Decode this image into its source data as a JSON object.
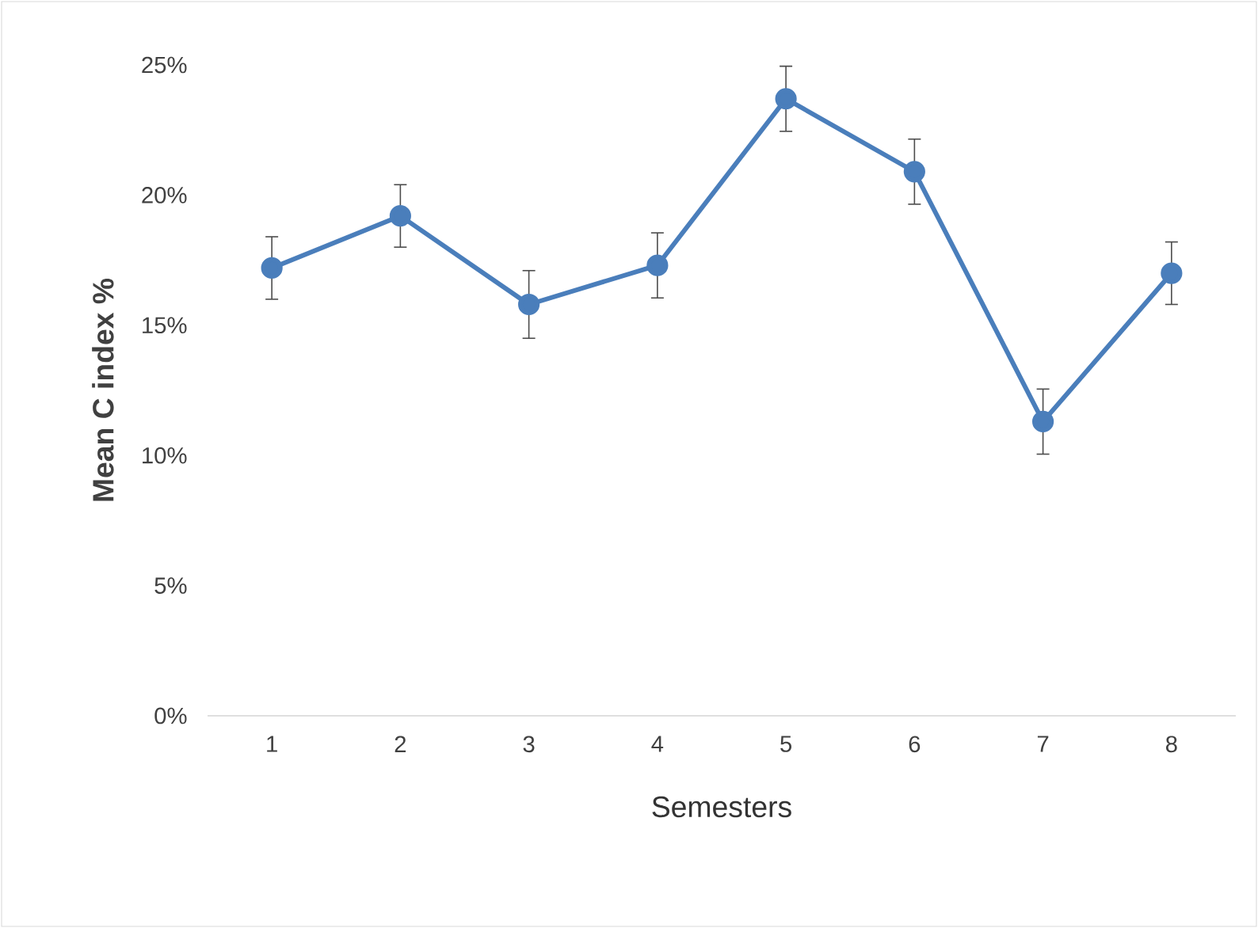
{
  "chart_data": {
    "type": "line",
    "xlabel": "Semesters",
    "ylabel": "Mean C index %",
    "categories": [
      "1",
      "2",
      "3",
      "4",
      "5",
      "6",
      "7",
      "8"
    ],
    "series": [
      {
        "color": "#4a7ebb",
        "values": [
          17.2,
          19.2,
          15.8,
          17.3,
          23.7,
          20.9,
          11.3,
          17.0
        ],
        "errors": [
          1.2,
          1.2,
          1.3,
          1.25,
          1.25,
          1.25,
          1.25,
          1.2
        ]
      }
    ],
    "ylim": [
      0,
      25
    ],
    "yticks": [
      {
        "value": 0,
        "label": "0%"
      },
      {
        "value": 5,
        "label": "5%"
      },
      {
        "value": 10,
        "label": "10%"
      },
      {
        "value": 15,
        "label": "15%"
      },
      {
        "value": 20,
        "label": "20%"
      },
      {
        "value": 25,
        "label": "25%"
      }
    ],
    "grid": false,
    "marker": "circle",
    "line_style": "solid"
  }
}
